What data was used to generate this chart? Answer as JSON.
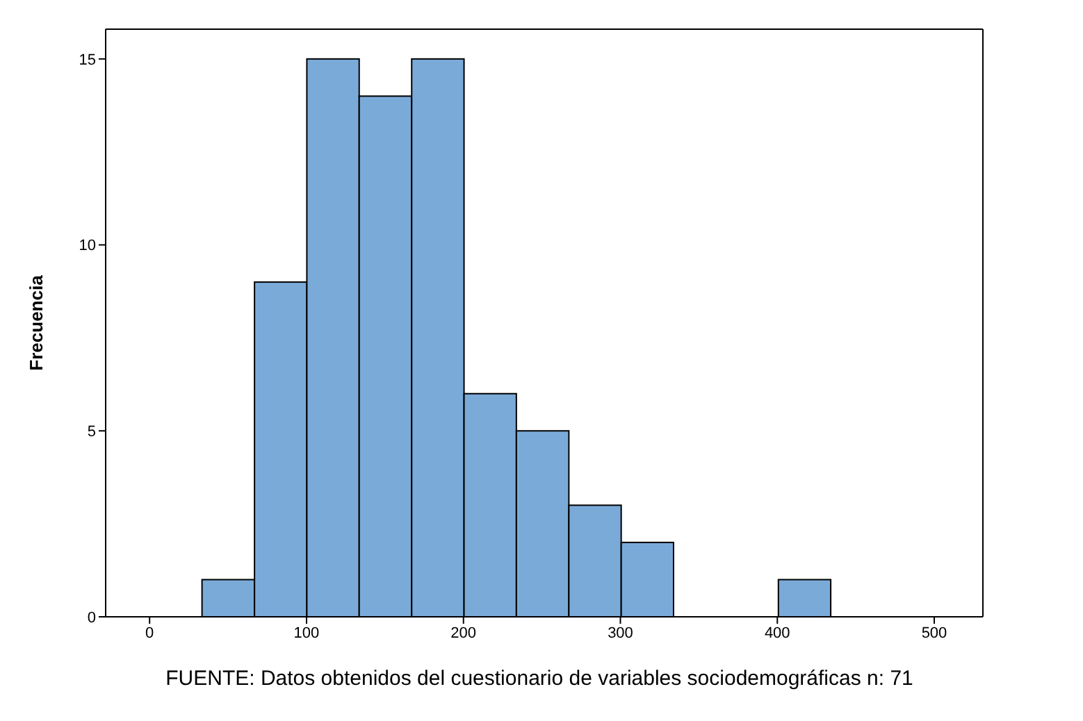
{
  "chart_data": {
    "type": "histogram",
    "ylabel": "Frecuencia",
    "bins": [
      33.3,
      66.7,
      100,
      133.3,
      166.7,
      200,
      233.3,
      266.7,
      300,
      333.3,
      366.7,
      400,
      433.3
    ],
    "values": [
      1,
      9,
      15,
      14,
      15,
      6,
      5,
      3,
      2,
      0,
      0,
      1
    ],
    "color": "#7aaad8",
    "xlim": [
      -28,
      531
    ],
    "xticks": [
      0,
      100,
      200,
      300,
      400,
      500
    ],
    "ylim": [
      0,
      15.8
    ],
    "yticks": [
      0,
      5,
      10,
      15
    ],
    "grid": false,
    "legend": false,
    "annotations": [
      "FUENTE: Datos obtenidos del cuestionario de variables sociodemográficas n: 71"
    ]
  }
}
